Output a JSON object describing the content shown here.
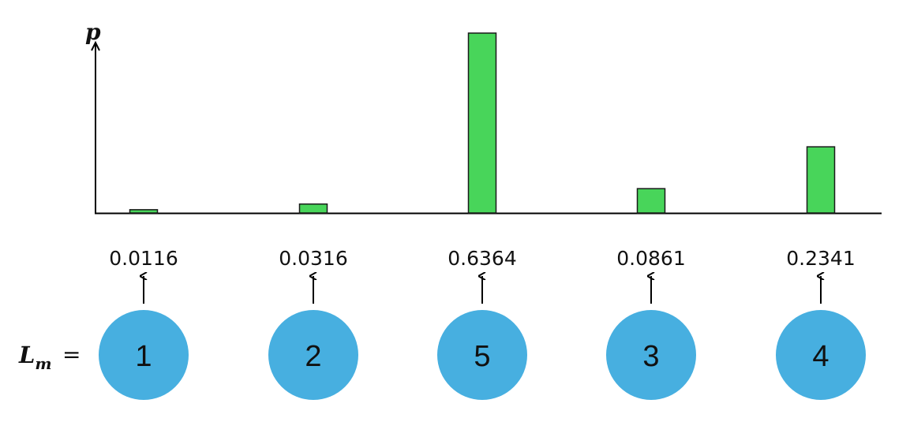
{
  "chart_data": {
    "type": "bar",
    "ylabel": "p",
    "categories": [
      "1",
      "2",
      "5",
      "3",
      "4"
    ],
    "values": [
      0.0116,
      0.0316,
      0.6364,
      0.0861,
      0.2341
    ],
    "value_labels": [
      "0.0116",
      "0.0316",
      "0.6364",
      "0.0861",
      "0.2341"
    ],
    "ylim": [
      0,
      0.72
    ],
    "grid": false,
    "row_label": {
      "base": "L",
      "sub": "m",
      "eq": "="
    },
    "colors": {
      "bar": "#48d55a",
      "node": "#47afe0"
    }
  }
}
